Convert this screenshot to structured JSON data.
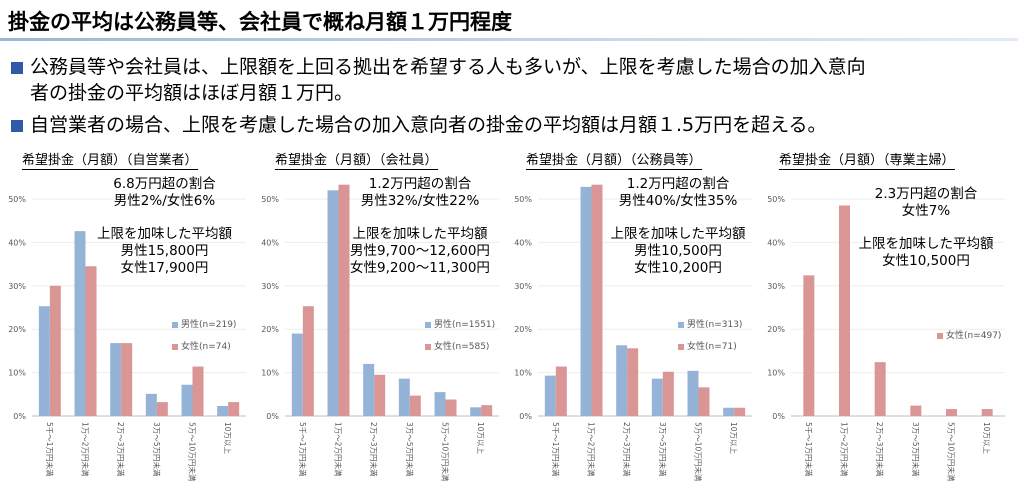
{
  "page": {
    "title": "掛金の平均は公務員等、会社員で概ね月額１万円程度",
    "bullets": [
      {
        "line1": "公務員等や会社員は、上限額を上回る拠出を希望する人も多いが、上限を考慮した場合の加入意向",
        "line2": "者の掛金の平均額はほぼ月額１万円。"
      },
      {
        "line1": "自営業者の場合、上限を考慮した場合の加入意向者の掛金の平均額は月額１.5万円を超える。",
        "line2": ""
      }
    ]
  },
  "colors": {
    "male": "#95b3d7",
    "female": "#d99694",
    "bullet": "#2e5aa8"
  },
  "chart_data": [
    {
      "type": "bar",
      "title": "希望掛金（月額）（自営業者）",
      "categories": [
        "5千～1万円未満",
        "1万～2万円未満",
        "2万～3万円未満",
        "3万～5万円未満",
        "5万～10万円未満",
        "10万以上"
      ],
      "y_ticks": [
        "0%",
        "10%",
        "20%",
        "30%",
        "40%",
        "50%"
      ],
      "ylim": [
        0,
        50
      ],
      "series": [
        {
          "name": "男性(n=219)",
          "values": [
            25.3,
            42.6,
            16.8,
            5.1,
            7.2,
            2.3
          ],
          "color": "#95b3d7"
        },
        {
          "name": "女性(n=74)",
          "values": [
            30.0,
            34.5,
            16.8,
            3.2,
            11.4,
            3.2
          ],
          "color": "#d99694"
        }
      ],
      "annotation": [
        "6.8万円超の割合",
        "男性2%/女性6%",
        "",
        "上限を加味した平均額",
        "男性15,800円",
        "女性17,900円"
      ]
    },
    {
      "type": "bar",
      "title": "希望掛金（月額）（会社員）",
      "categories": [
        "5千～1万円未満",
        "1万～2万円未満",
        "2万～3万円未満",
        "3万～5万円未満",
        "5万～10万円未満",
        "10万以上"
      ],
      "y_ticks": [
        "0%",
        "10%",
        "20%",
        "30%",
        "40%",
        "50%"
      ],
      "ylim": [
        0,
        50
      ],
      "series": [
        {
          "name": "男性(n=1551)",
          "values": [
            19.0,
            52.0,
            12.0,
            8.6,
            5.5,
            2.0
          ],
          "color": "#95b3d7"
        },
        {
          "name": "女性(n=585)",
          "values": [
            25.3,
            53.3,
            9.5,
            4.7,
            3.8,
            2.5
          ],
          "color": "#d99694"
        }
      ],
      "annotation": [
        "1.2万円超の割合",
        "男性32%/女性22%",
        "",
        "上限を加味した平均額",
        "男性9,700～12,600円",
        "女性9,200～11,300円"
      ]
    },
    {
      "type": "bar",
      "title": "希望掛金（月額）（公務員等）",
      "categories": [
        "5千～1万円未満",
        "1万～2万円未満",
        "2万～3万円未満",
        "3万～5万円未満",
        "5万～10万円未満",
        "10万以上"
      ],
      "y_ticks": [
        "0%",
        "10%",
        "20%",
        "30%",
        "40%",
        "50%"
      ],
      "ylim": [
        0,
        50
      ],
      "series": [
        {
          "name": "男性(n=313)",
          "values": [
            9.3,
            52.8,
            16.3,
            8.6,
            10.4,
            1.9
          ],
          "color": "#95b3d7"
        },
        {
          "name": "女性(n=71)",
          "values": [
            11.4,
            53.3,
            15.6,
            10.2,
            6.6,
            1.9
          ],
          "color": "#d99694"
        }
      ],
      "annotation": [
        "1.2万円超の割合",
        "男性40%/女性35%",
        "",
        "上限を加味した平均額",
        "男性10,500円",
        "女性10,200円"
      ]
    },
    {
      "type": "bar",
      "title": "希望掛金（月額）（専業主婦）",
      "categories": [
        "5千～1万円未満",
        "1万～2万円未満",
        "2万～3万円未満",
        "3万～5万円未満",
        "5万～10万円未満",
        "10万以上"
      ],
      "y_ticks": [
        "0%",
        "10%",
        "20%",
        "30%",
        "40%",
        "50%"
      ],
      "ylim": [
        0,
        50
      ],
      "series": [
        {
          "name": "女性(n=497)",
          "values": [
            32.4,
            48.5,
            12.4,
            2.4,
            1.6,
            1.6
          ],
          "color": "#d99694"
        }
      ],
      "annotation": [
        "2.3万円超の割合",
        "女性7%",
        "",
        "上限を加味した平均額",
        "女性10,500円"
      ]
    }
  ]
}
